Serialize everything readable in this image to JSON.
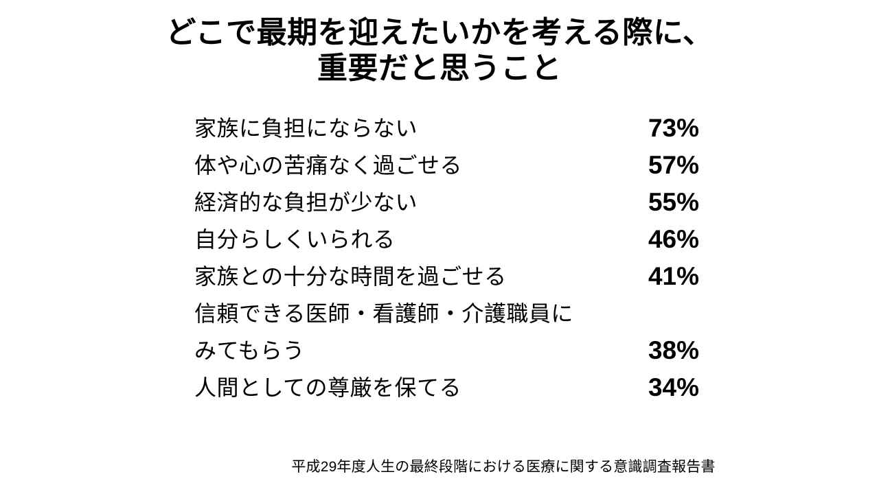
{
  "slide": {
    "title": "どこで最期を迎えたいかを考える際に、\n重要だと思うこと",
    "items": [
      {
        "label": "家族に負担にならない",
        "percent": "73%"
      },
      {
        "label": "体や心の苦痛なく過ごせる",
        "percent": "57%"
      },
      {
        "label": "経済的な負担が少ない",
        "percent": "55%"
      },
      {
        "label": "自分らしくいられる",
        "percent": "46%"
      },
      {
        "label": "家族との十分な時間を過ごせる",
        "percent": "41%"
      },
      {
        "label": "信頼できる医師・看護師・介護職員に\nみてもらう",
        "percent": "38%"
      },
      {
        "label": "人間としての尊厳を保てる",
        "percent": "34%"
      }
    ],
    "source": "平成29年度人生の最終段階における医療に関する意識調査報告書",
    "colors": {
      "background": "#ffffff",
      "text": "#000000"
    }
  }
}
